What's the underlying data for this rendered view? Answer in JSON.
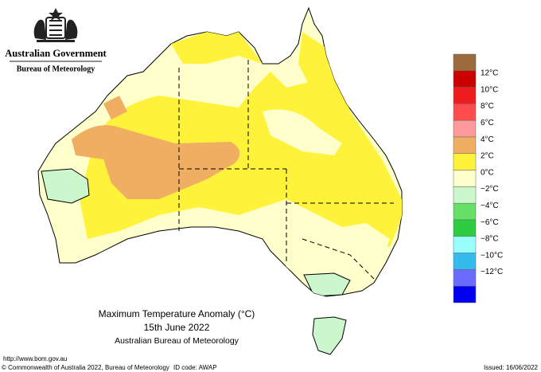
{
  "header": {
    "government": "Australian Government",
    "bureau": "Bureau of Meteorology"
  },
  "title": {
    "line1": "Maximum Temperature Anomaly (°C)",
    "line2": "15th June 2022",
    "line3": "Australian Bureau of Meteorology"
  },
  "legend": {
    "colors": [
      "#9c6a3c",
      "#cc0000",
      "#ee1c1c",
      "#ff4d4d",
      "#ff9a9a",
      "#f0ae62",
      "#fff23a",
      "#ffffcc",
      "#ccf7cc",
      "#66e066",
      "#2ecc40",
      "#99ffff",
      "#33bbee",
      "#6b6bff",
      "#0000ee"
    ],
    "labels": [
      "12°C",
      "10°C",
      "8°C",
      "6°C",
      "4°C",
      "2°C",
      "0°C",
      "−2°C",
      "−4°C",
      "−6°C",
      "−8°C",
      "−10°C",
      "−12°C"
    ]
  },
  "footer": {
    "url": "http://www.bom.gov.au",
    "copyright": "© Commonwealth of Australia 2022, Bureau of Meteorology",
    "id_code": "ID code: AWAP",
    "issued": "Issued: 16/06/2022"
  }
}
